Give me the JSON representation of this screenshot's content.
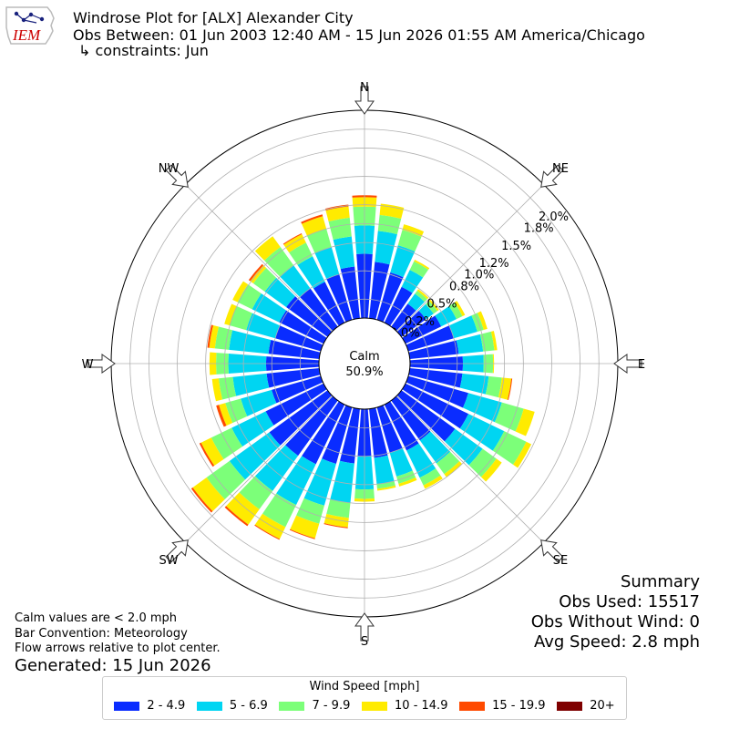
{
  "header": {
    "title": "Windrose Plot for [ALX] Alexander City",
    "obs_between": "Obs Between: 01 Jun 2003 12:40 AM - 15 Jun 2026 01:55 AM America/Chicago",
    "constraints": "↳ constraints: Jun"
  },
  "logo": {
    "text": "IEM",
    "icon": "iowa-state-outline-icon",
    "color": "#cc0000"
  },
  "notes": {
    "calm_def": "Calm values are < 2.0 mph",
    "bar_convention": "Bar Convention: Meteorology",
    "flow_arrows": "Flow arrows relative to plot center.",
    "generated": "Generated: 15 Jun 2026"
  },
  "summary": {
    "title": "Summary",
    "obs_used": "Obs Used: 15517",
    "obs_without_wind": "Obs Without Wind: 0",
    "avg_speed": "Avg Speed: 2.8 mph"
  },
  "chart_data": {
    "type": "windrose",
    "calm_label": "Calm",
    "calm_value": "50.9%",
    "radial_ticks": [
      0.0,
      0.2,
      0.5,
      0.8,
      1.0,
      1.2,
      1.5,
      1.8,
      2.0
    ],
    "radial_tick_labels": [
      "0.0%",
      "0.2%",
      "0.5%",
      "0.8%",
      "1.0%",
      "1.2%",
      "1.5%",
      "1.8%",
      "2.0%"
    ],
    "rmax": 2.2,
    "directions": [
      "N",
      "NE",
      "E",
      "SE",
      "S",
      "SW",
      "W",
      "NW"
    ],
    "legend_title": "Wind Speed [mph]",
    "bins": [
      {
        "label": "2 - 4.9",
        "color": "#0a2cff"
      },
      {
        "label": "5 - 6.9",
        "color": "#00d5f2"
      },
      {
        "label": "7 - 9.9",
        "color": "#7cff79"
      },
      {
        "label": "10 - 14.9",
        "color": "#ffeb00"
      },
      {
        "label": "15 - 19.9",
        "color": "#ff4a00"
      },
      {
        "label": "20+",
        "color": "#7f0000"
      }
    ],
    "sectors": [
      {
        "dir": 0,
        "values": [
          0.68,
          0.3,
          0.2,
          0.1,
          0.02,
          0.0
        ]
      },
      {
        "dir": 10,
        "values": [
          0.6,
          0.33,
          0.17,
          0.12,
          0.0,
          0.0
        ]
      },
      {
        "dir": 20,
        "values": [
          0.52,
          0.3,
          0.17,
          0.06,
          0.0,
          0.0
        ]
      },
      {
        "dir": 30,
        "values": [
          0.42,
          0.2,
          0.1,
          0.02,
          0.0,
          0.0
        ]
      },
      {
        "dir": 40,
        "values": [
          0.3,
          0.13,
          0.04,
          0.02,
          0.0,
          0.0
        ]
      },
      {
        "dir": 50,
        "values": [
          0.32,
          0.1,
          0.05,
          0.02,
          0.0,
          0.0
        ]
      },
      {
        "dir": 60,
        "values": [
          0.42,
          0.18,
          0.07,
          0.03,
          0.0,
          0.0
        ]
      },
      {
        "dir": 70,
        "values": [
          0.5,
          0.26,
          0.07,
          0.04,
          0.0,
          0.0
        ]
      },
      {
        "dir": 80,
        "values": [
          0.52,
          0.26,
          0.12,
          0.03,
          0.0,
          0.0
        ]
      },
      {
        "dir": 90,
        "values": [
          0.56,
          0.22,
          0.1,
          0.01,
          0.0,
          0.0
        ]
      },
      {
        "dir": 100,
        "values": [
          0.56,
          0.28,
          0.14,
          0.1,
          0.01,
          0.0
        ]
      },
      {
        "dir": 110,
        "values": [
          0.66,
          0.37,
          0.24,
          0.12,
          0.0,
          0.0
        ]
      },
      {
        "dir": 120,
        "values": [
          0.74,
          0.42,
          0.26,
          0.06,
          0.0,
          0.0
        ]
      },
      {
        "dir": 130,
        "values": [
          0.7,
          0.36,
          0.18,
          0.07,
          0.0,
          0.0
        ]
      },
      {
        "dir": 140,
        "values": [
          0.52,
          0.3,
          0.14,
          0.04,
          0.0,
          0.0
        ]
      },
      {
        "dir": 150,
        "values": [
          0.54,
          0.32,
          0.09,
          0.04,
          0.0,
          0.0
        ]
      },
      {
        "dir": 160,
        "values": [
          0.5,
          0.26,
          0.08,
          0.03,
          0.0,
          0.0
        ]
      },
      {
        "dir": 170,
        "values": [
          0.52,
          0.28,
          0.05,
          0.02,
          0.0,
          0.0
        ]
      },
      {
        "dir": 180,
        "values": [
          0.5,
          0.35,
          0.1,
          0.03,
          0.0,
          0.0
        ]
      },
      {
        "dir": 190,
        "values": [
          0.58,
          0.42,
          0.16,
          0.1,
          0.01,
          0.0
        ]
      },
      {
        "dir": 200,
        "values": [
          0.62,
          0.46,
          0.2,
          0.16,
          0.01,
          0.0
        ]
      },
      {
        "dir": 210,
        "values": [
          0.7,
          0.48,
          0.26,
          0.14,
          0.01,
          0.0
        ]
      },
      {
        "dir": 220,
        "values": [
          0.72,
          0.46,
          0.24,
          0.2,
          0.02,
          0.0
        ]
      },
      {
        "dir": 230,
        "values": [
          0.76,
          0.52,
          0.3,
          0.18,
          0.02,
          0.0
        ]
      },
      {
        "dir": 240,
        "values": [
          0.68,
          0.4,
          0.24,
          0.12,
          0.02,
          0.0
        ]
      },
      {
        "dir": 250,
        "values": [
          0.54,
          0.34,
          0.17,
          0.07,
          0.03,
          0.0
        ]
      },
      {
        "dir": 260,
        "values": [
          0.56,
          0.36,
          0.15,
          0.07,
          0.0,
          0.0
        ]
      },
      {
        "dir": 270,
        "values": [
          0.56,
          0.4,
          0.13,
          0.07,
          0.0,
          0.0
        ]
      },
      {
        "dir": 280,
        "values": [
          0.54,
          0.42,
          0.15,
          0.06,
          0.02,
          0.0
        ]
      },
      {
        "dir": 290,
        "values": [
          0.5,
          0.32,
          0.18,
          0.06,
          0.0,
          0.0
        ]
      },
      {
        "dir": 300,
        "values": [
          0.52,
          0.32,
          0.17,
          0.06,
          0.0,
          0.0
        ]
      },
      {
        "dir": 310,
        "values": [
          0.54,
          0.28,
          0.15,
          0.04,
          0.02,
          0.0
        ]
      },
      {
        "dir": 320,
        "values": [
          0.5,
          0.3,
          0.24,
          0.14,
          0.0,
          0.0
        ]
      },
      {
        "dir": 330,
        "values": [
          0.48,
          0.3,
          0.16,
          0.1,
          0.01,
          0.0
        ]
      },
      {
        "dir": 340,
        "values": [
          0.5,
          0.3,
          0.2,
          0.14,
          0.02,
          0.0
        ]
      },
      {
        "dir": 350,
        "values": [
          0.55,
          0.32,
          0.2,
          0.12,
          0.02,
          0.0
        ]
      }
    ]
  }
}
